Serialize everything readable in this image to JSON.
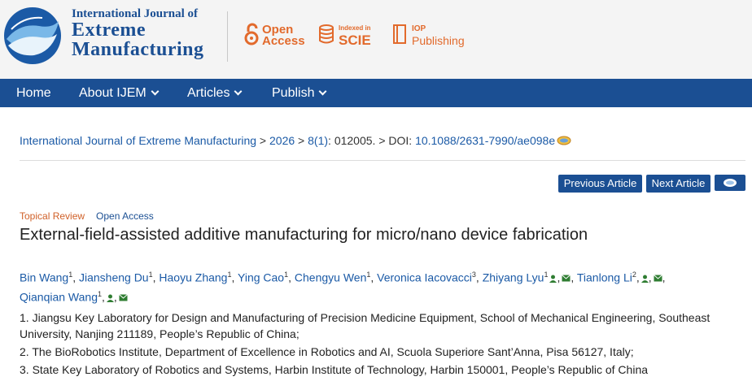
{
  "header": {
    "journal_line1": "International Journal of",
    "journal_line2": "Extreme",
    "journal_line3": "Manufacturing",
    "badge_open": "Open",
    "badge_access": "Access",
    "badge_indexed": "Indexed in",
    "badge_scie": "SCIE",
    "badge_iop": "IOP",
    "badge_publishing": "Publishing",
    "brand_color": "#1b4f93",
    "accent_color": "#e26a2c"
  },
  "nav": {
    "items": [
      {
        "label": "Home"
      },
      {
        "label": "About IJEM"
      },
      {
        "label": "Articles"
      },
      {
        "label": "Publish"
      }
    ]
  },
  "breadcrumb": {
    "journal": "International Journal of Extreme Manufacturing",
    "sep1": " > ",
    "year": "2026",
    "sep2": " > ",
    "issue": "8(1)",
    "article_no": ": 012005.",
    "sep3": " > DOI: ",
    "doi": "10.1088/2631-7990/ae098e"
  },
  "buttons": {
    "previous": "Previous Article",
    "next": "Next Article"
  },
  "article": {
    "tag_type": "Topical Review",
    "tag_access": "Open Access",
    "title": "External-field-assisted additive manufacturing for micro/nano device fabrication"
  },
  "authors": [
    {
      "name": "Bin Wang",
      "aff": "1"
    },
    {
      "name": "Jiansheng Du",
      "aff": "1"
    },
    {
      "name": "Haoyu Zhang",
      "aff": "1"
    },
    {
      "name": "Ying Cao",
      "aff": "1"
    },
    {
      "name": "Chengyu Wen",
      "aff": "1"
    },
    {
      "name": "Veronica Iacovacci",
      "aff": "3"
    },
    {
      "name": "Zhiyang Lyu",
      "aff": "1"
    },
    {
      "name": "Tianlong Li",
      "aff": "2"
    },
    {
      "name": "Qianqian Wang",
      "aff": "1"
    }
  ],
  "affiliations": [
    "1. Jiangsu Key Laboratory for Design and Manufacturing of Precision Medicine Equipment, School of Mechanical Engineering, Southeast University, Nanjing 211189, People’s Republic of China;",
    "2. The BioRobotics Institute, Department of Excellence in Robotics and AI, Scuola Superiore Sant’Anna, Pisa 56127, Italy;",
    "3. State Key Laboratory of Robotics and Systems, Harbin Institute of Technology, Harbin 150001, People’s Republic of China"
  ]
}
